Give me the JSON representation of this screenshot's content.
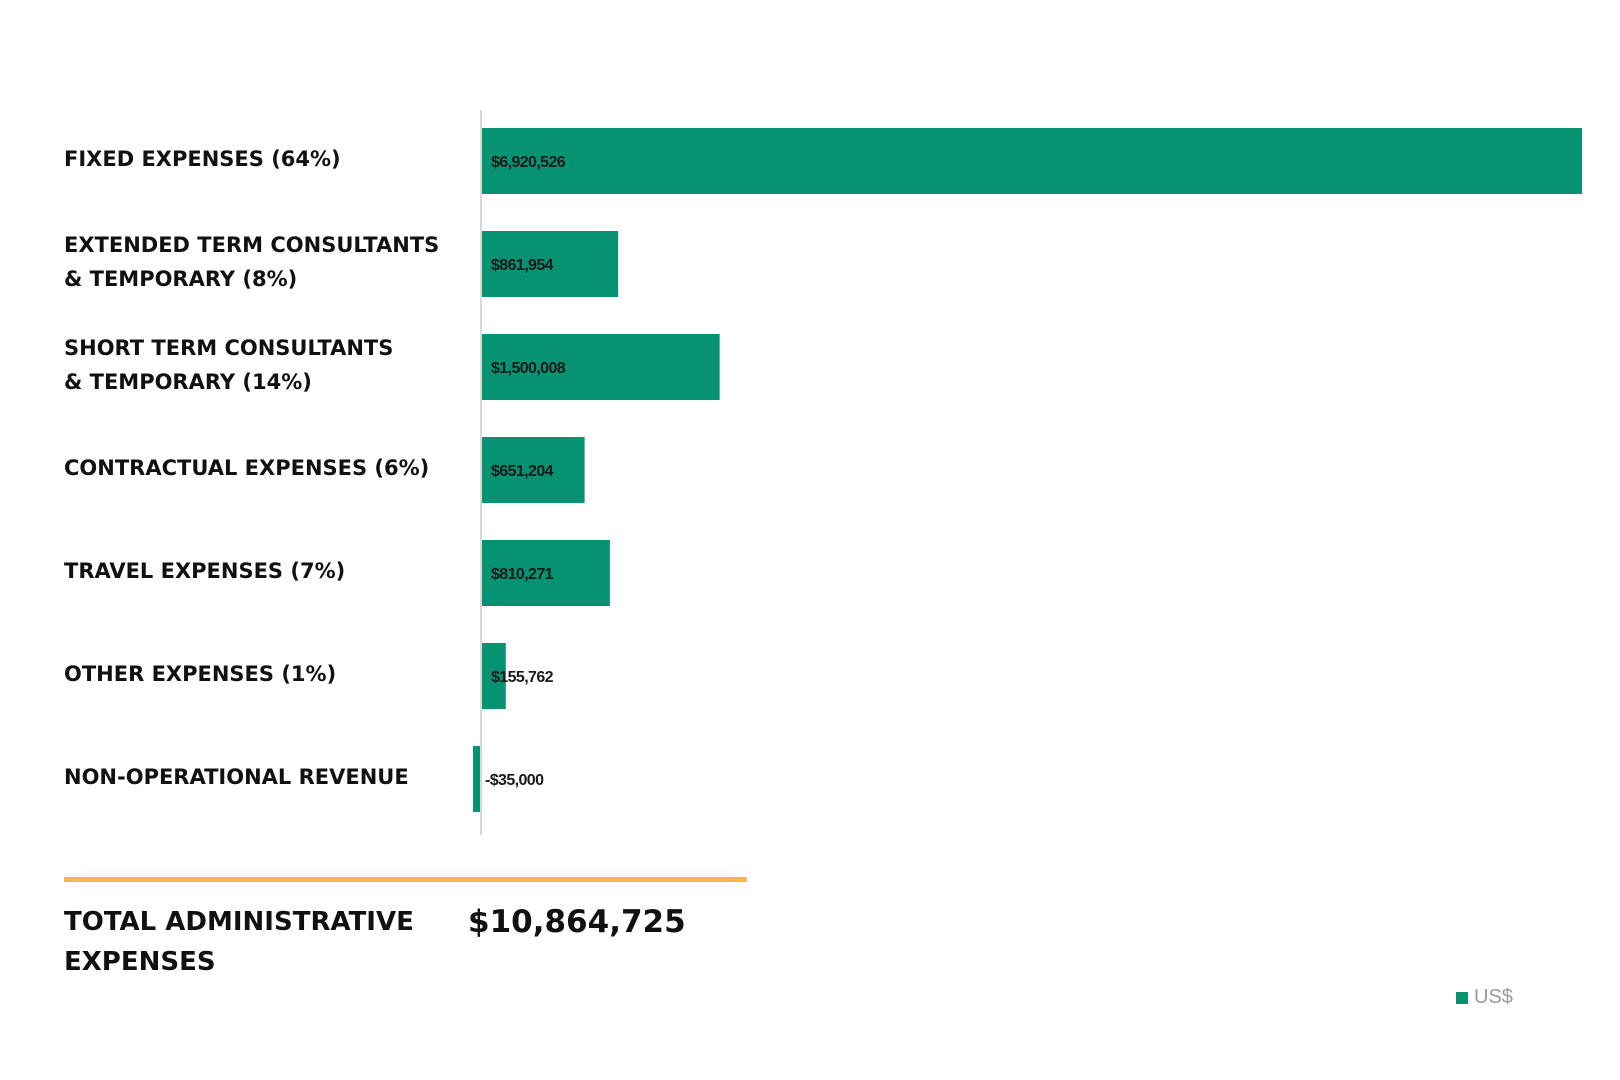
{
  "chart_data": {
    "type": "bar",
    "orientation": "horizontal",
    "categories": [
      "FIXED EXPENSES (64%)",
      "EXTENDED TERM CONSULTANTS\n& TEMPORARY (8%)",
      "SHORT TERM CONSULTANTS\n& TEMPORARY (14%)",
      "CONTRACTUAL EXPENSES (6%)",
      "TRAVEL EXPENSES (7%)",
      "OTHER EXPENSES (1%)",
      "NON-OPERATIONAL REVENUE"
    ],
    "values": [
      6920526,
      861954,
      1500008,
      651204,
      810271,
      155762,
      -35000
    ],
    "value_labels": [
      "$6,920,526",
      "$861,954",
      "$1,500,008",
      "$651,204",
      "$810,271",
      "$155,762",
      "-$35,000"
    ],
    "series": [
      {
        "name": "US$",
        "values": [
          6920526,
          861954,
          1500008,
          651204,
          810271,
          155762,
          -35000
        ]
      }
    ],
    "xlim": [
      -35000,
      6920526
    ],
    "grid": false,
    "legend_position": "bottom-right",
    "bar_color": "#079272"
  },
  "total": {
    "label": "TOTAL ADMINISTRATIVE\nEXPENSES",
    "value": "$10,864,725",
    "rule_color": "#f5b94a"
  },
  "legend": {
    "label": "US$",
    "color": "#079272"
  }
}
